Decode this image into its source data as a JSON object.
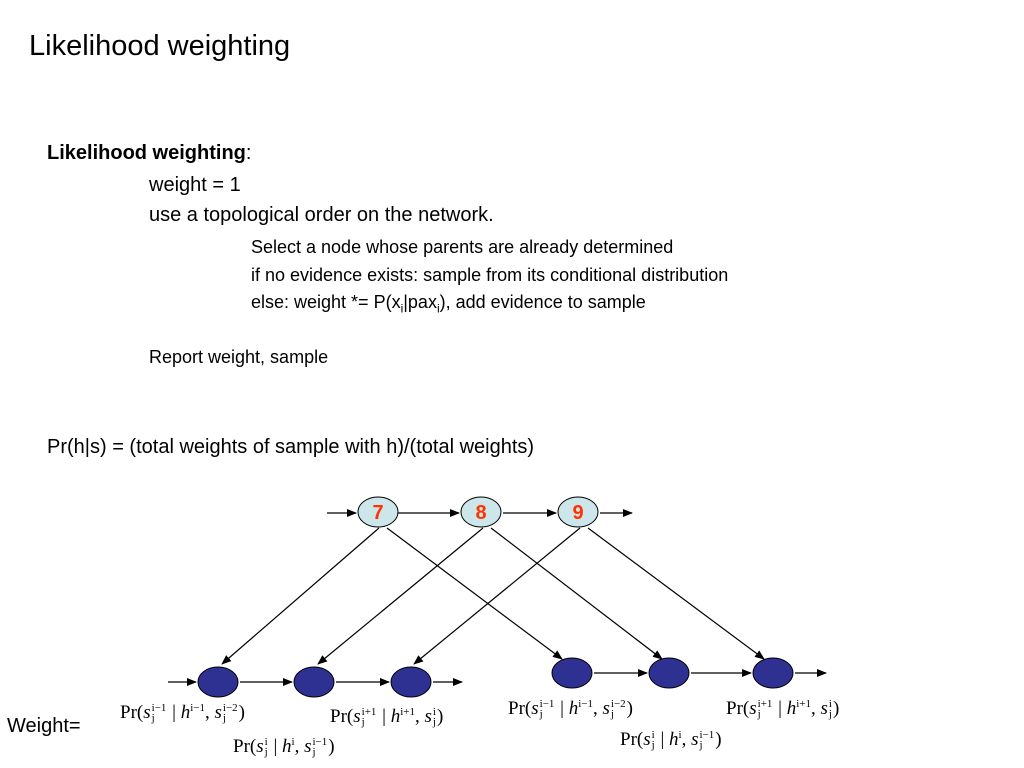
{
  "title": "Likelihood weighting",
  "algorithm": {
    "heading": "Likelihood weighting",
    "heading_colon": ":",
    "line_weight": "weight = 1",
    "line_order": "use a topological order on the network.",
    "step_select": "Select a node whose parents are already determined",
    "step_no_evidence": "if no evidence exists: sample from its conditional distribution",
    "step_else_a": "else: weight *= P(x",
    "step_else_sub1": "i",
    "step_else_b": "|pax",
    "step_else_sub2": "i",
    "step_else_c": "), add evidence to sample",
    "report": "Report weight, sample"
  },
  "formula": "Pr(h|s) = (total weights of sample with h)/(total weights)",
  "weight_label": "Weight=",
  "diagram": {
    "top_nodes": [
      "7",
      "8",
      "9"
    ],
    "top_node_fill": "#cde6ea",
    "top_node_text_color": "#ff3300",
    "bottom_node_fill": "#2e3192",
    "terms": {
      "t1": {
        "pr": "Pr(",
        "s": "s",
        "sup1": "i−1",
        "sub1": "j",
        "bar": " | ",
        "h": "h",
        "hsup": "i−1",
        "comma": ", ",
        "s2": "s",
        "sup2": "i−2",
        "sub2": "j",
        "close": ")"
      },
      "t2": {
        "pr": "Pr(",
        "s": "s",
        "sup1": "i+1",
        "sub1": "j",
        "bar": " | ",
        "h": "h",
        "hsup": "i+1",
        "comma": ", ",
        "s2": "s",
        "sup2": "i",
        "sub2": "j",
        "close": ")"
      },
      "t3": {
        "pr": "Pr(",
        "s": "s",
        "sup1": "i",
        "sub1": "j",
        "bar": " | ",
        "h": "h",
        "hsup": "i",
        "comma": ", ",
        "s2": "s",
        "sup2": "i−1",
        "sub2": "j",
        "close": ")"
      },
      "t4": {
        "pr": "Pr(",
        "s": "s",
        "sup1": "i−1",
        "sub1": "j",
        "bar": " | ",
        "h": "h",
        "hsup": "i−1",
        "comma": ", ",
        "s2": "s",
        "sup2": "i−2",
        "sub2": "j",
        "close": ")"
      },
      "t5": {
        "pr": "Pr(",
        "s": "s",
        "sup1": "i+1",
        "sub1": "j",
        "bar": " | ",
        "h": "h",
        "hsup": "i+1",
        "comma": ", ",
        "s2": "s",
        "sup2": "i",
        "sub2": "j",
        "close": ")"
      },
      "t6": {
        "pr": "Pr(",
        "s": "s",
        "sup1": "i",
        "sub1": "j",
        "bar": " | ",
        "h": "h",
        "hsup": "i",
        "comma": ", ",
        "s2": "s",
        "sup2": "i−1",
        "sub2": "j",
        "close": ")"
      }
    }
  }
}
